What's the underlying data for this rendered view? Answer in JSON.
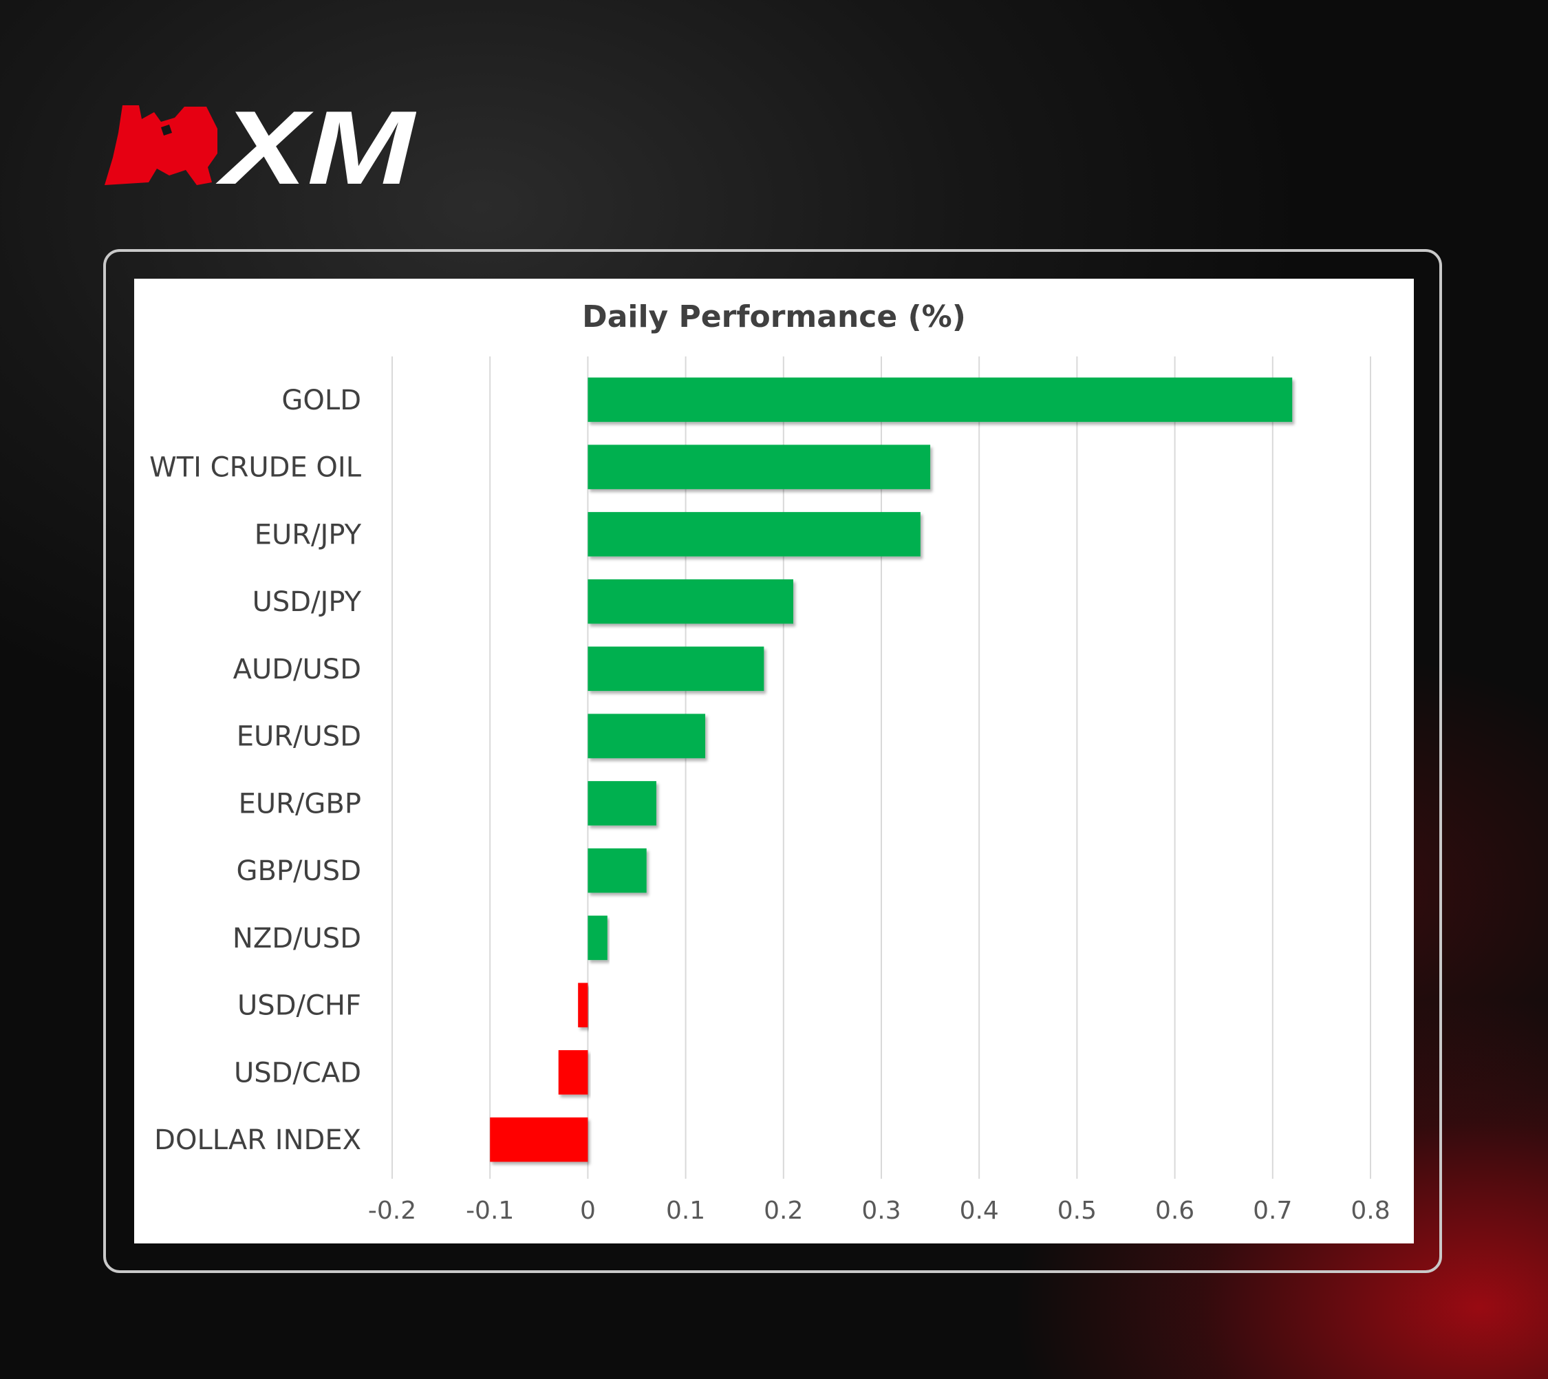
{
  "brand": {
    "logo_text": "XM",
    "logo_icon": "bull-head-icon",
    "colors": {
      "red": "#e60012",
      "white": "#ffffff"
    }
  },
  "chart_data": {
    "type": "bar",
    "orientation": "horizontal",
    "title": "Daily Performance (%)",
    "xlabel": "",
    "ylabel": "",
    "categories": [
      "GOLD",
      "WTI CRUDE OIL",
      "EUR/JPY",
      "USD/JPY",
      "AUD/USD",
      "EUR/USD",
      "EUR/GBP",
      "GBP/USD",
      "NZD/USD",
      "USD/CHF",
      "USD/CAD",
      "DOLLAR INDEX"
    ],
    "values": [
      0.72,
      0.35,
      0.34,
      0.21,
      0.18,
      0.12,
      0.07,
      0.06,
      0.02,
      -0.01,
      -0.03,
      -0.1
    ],
    "xlim": [
      -0.2,
      0.8
    ],
    "xticks": [
      "-0.2",
      "-0.1",
      "0",
      "0.1",
      "0.2",
      "0.3",
      "0.4",
      "0.5",
      "0.6",
      "0.7",
      "0.8"
    ],
    "grid": "vertical",
    "legend": "none",
    "colors": {
      "positive": "#00b050",
      "negative": "#ff0000"
    }
  }
}
